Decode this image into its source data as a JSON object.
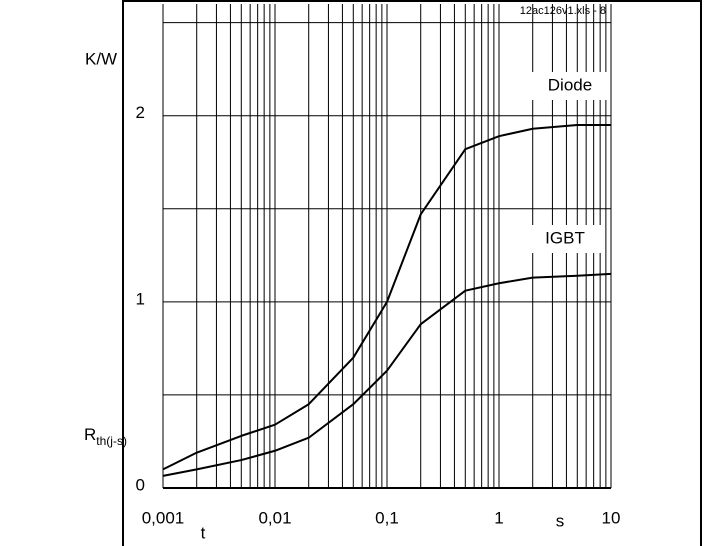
{
  "chart_data": {
    "type": "line",
    "source_note": "12ac126v1.xls - 8",
    "y_unit": "K/W",
    "ylabel": "R",
    "ylabel_sub": "th(j-s)",
    "xlabel": "t",
    "x_unit": "s",
    "x": [
      0.001,
      0.002,
      0.005,
      0.01,
      0.02,
      0.05,
      0.1,
      0.2,
      0.5,
      1,
      2,
      5,
      10
    ],
    "series": [
      {
        "name": "Diode",
        "color": "#000000",
        "values": [
          0.1,
          0.19,
          0.28,
          0.34,
          0.45,
          0.7,
          1.0,
          1.47,
          1.82,
          1.89,
          1.93,
          1.95,
          1.95
        ]
      },
      {
        "name": "IGBT",
        "color": "#000000",
        "values": [
          0.065,
          0.1,
          0.15,
          0.2,
          0.27,
          0.45,
          0.63,
          0.88,
          1.06,
          1.1,
          1.13,
          1.14,
          1.15
        ]
      }
    ],
    "xscale": "log",
    "xlim": [
      0.001,
      10
    ],
    "xticks": [
      {
        "value": 0.001,
        "label": "0,001"
      },
      {
        "value": 0.01,
        "label": "0,01"
      },
      {
        "value": 0.1,
        "label": "0,1"
      },
      1,
      10
    ],
    "x_minor_grid": [
      0.002,
      0.003,
      0.004,
      0.005,
      0.006,
      0.007,
      0.008,
      0.009,
      0.02,
      0.03,
      0.04,
      0.05,
      0.06,
      0.07,
      0.08,
      0.09,
      0.2,
      0.3,
      0.4,
      0.5,
      0.6,
      0.7,
      0.8,
      0.9,
      2,
      3,
      4,
      5,
      6,
      7,
      8,
      9
    ],
    "ylim": [
      0,
      2.6
    ],
    "yticks": [
      0,
      1,
      2
    ],
    "y_minor_grid": [
      0.5,
      1.5,
      2.5
    ],
    "grid": true
  }
}
